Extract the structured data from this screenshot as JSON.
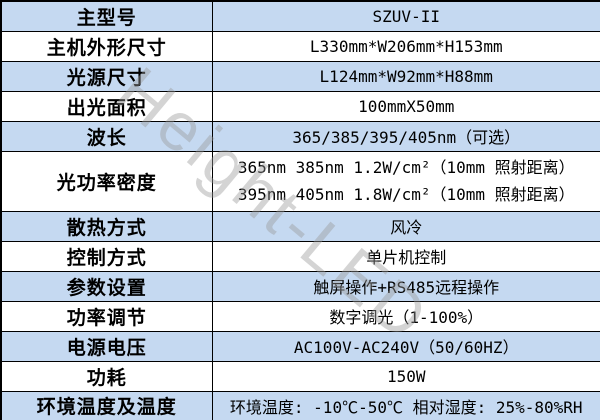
{
  "table": {
    "colors": {
      "shaded_row_bg": "#c5d9f1",
      "plain_row_bg": "#ffffff",
      "border": "#000000",
      "text": "#000000"
    },
    "rows": [
      {
        "label": "主型号",
        "value": "SZUV-II",
        "shaded": true
      },
      {
        "label": "主机外形尺寸",
        "value": "L330mm*W206mm*H153mm",
        "shaded": false
      },
      {
        "label": "光源尺寸",
        "value": "L124mm*W92mm*H88mm",
        "shaded": true
      },
      {
        "label": "出光面积",
        "value": "100mmX50mm",
        "shaded": false
      },
      {
        "label": "波长",
        "value": "365/385/395/405nm（可选）",
        "shaded": true
      },
      {
        "label": "光功率密度",
        "value_lines": [
          "365nm 385nm  1.2W/cm²（10mm 照射距离）",
          "395nm 405nm  1.8W/cm²（10mm 照射距离）"
        ],
        "shaded": false
      },
      {
        "label": "散热方式",
        "value": "风冷",
        "shaded": true
      },
      {
        "label": "控制方式",
        "value": "单片机控制",
        "shaded": false
      },
      {
        "label": "参数设置",
        "value": "触屏操作+RS485远程操作",
        "shaded": true
      },
      {
        "label": "功率调节",
        "value": "数字调光（1-100%）",
        "shaded": false
      },
      {
        "label": "电源电压",
        "value": "AC100V-AC240V（50/60HZ）",
        "shaded": true
      },
      {
        "label": "功耗",
        "value": "150W",
        "shaded": false
      },
      {
        "label": "环境温度及温度",
        "value": "环境温度: -10℃-50℃  相对湿度: 25%-80%RH",
        "shaded": true
      }
    ]
  },
  "watermark": {
    "text": "Height-LED",
    "color": "#9a9a9a"
  }
}
